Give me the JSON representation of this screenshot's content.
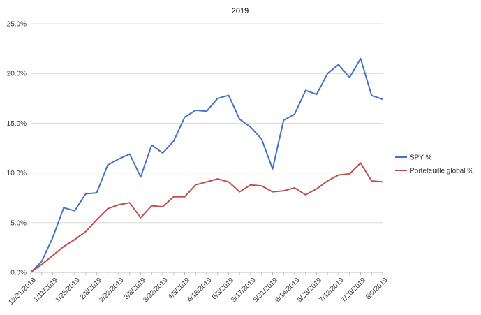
{
  "chart_data": {
    "type": "line",
    "title": "2019",
    "xlabel": "",
    "ylabel": "",
    "ylim": [
      0,
      25
    ],
    "y_ticks": [
      "0.0%",
      "5.0%",
      "10.0%",
      "15.0%",
      "20.0%",
      "25.0%"
    ],
    "y_tick_values": [
      0,
      5,
      10,
      15,
      20,
      25
    ],
    "x_tick_labels": [
      "12/31/2018",
      "1/11/2019",
      "1/25/2019",
      "2/8/2019",
      "2/22/2019",
      "3/8/2019",
      "3/22/2019",
      "4/5/2019",
      "4/18/2019",
      "5/3/2019",
      "5/17/2019",
      "5/31/2019",
      "6/14/2019",
      "6/28/2019",
      "7/12/2019",
      "7/26/2019",
      "8/9/2019"
    ],
    "x": [
      "12/31/2018",
      "1/4/2019",
      "1/11/2019",
      "1/18/2019",
      "1/25/2019",
      "2/1/2019",
      "2/8/2019",
      "2/15/2019",
      "2/22/2019",
      "3/1/2019",
      "3/8/2019",
      "3/15/2019",
      "3/22/2019",
      "3/29/2019",
      "4/5/2019",
      "4/12/2019",
      "4/18/2019",
      "4/26/2019",
      "5/3/2019",
      "5/10/2019",
      "5/17/2019",
      "5/24/2019",
      "5/31/2019",
      "6/7/2019",
      "6/14/2019",
      "6/21/2019",
      "6/28/2019",
      "7/5/2019",
      "7/12/2019",
      "7/19/2019",
      "7/26/2019",
      "8/2/2019",
      "8/9/2019"
    ],
    "grid": "horizontal",
    "legend_position": "right",
    "series": [
      {
        "name": "SPY %",
        "color": "#4472C4",
        "values": [
          0.0,
          1.1,
          3.5,
          6.5,
          6.2,
          7.9,
          8.0,
          10.8,
          11.4,
          11.9,
          9.6,
          12.8,
          12.0,
          13.2,
          15.6,
          16.3,
          16.2,
          17.5,
          17.8,
          15.4,
          14.6,
          13.4,
          10.4,
          15.3,
          15.9,
          18.3,
          17.9,
          20.0,
          20.9,
          19.6,
          21.5,
          17.8,
          17.4
        ]
      },
      {
        "name": "Portefeuille global %",
        "color": "#C0504D",
        "values": [
          0.0,
          0.8,
          1.7,
          2.6,
          3.3,
          4.1,
          5.3,
          6.4,
          6.8,
          7.0,
          5.5,
          6.7,
          6.6,
          7.6,
          7.6,
          8.8,
          9.1,
          9.4,
          9.1,
          8.1,
          8.8,
          8.7,
          8.1,
          8.2,
          8.5,
          7.8,
          8.4,
          9.2,
          9.8,
          9.9,
          11.0,
          9.2,
          9.1
        ]
      }
    ]
  }
}
